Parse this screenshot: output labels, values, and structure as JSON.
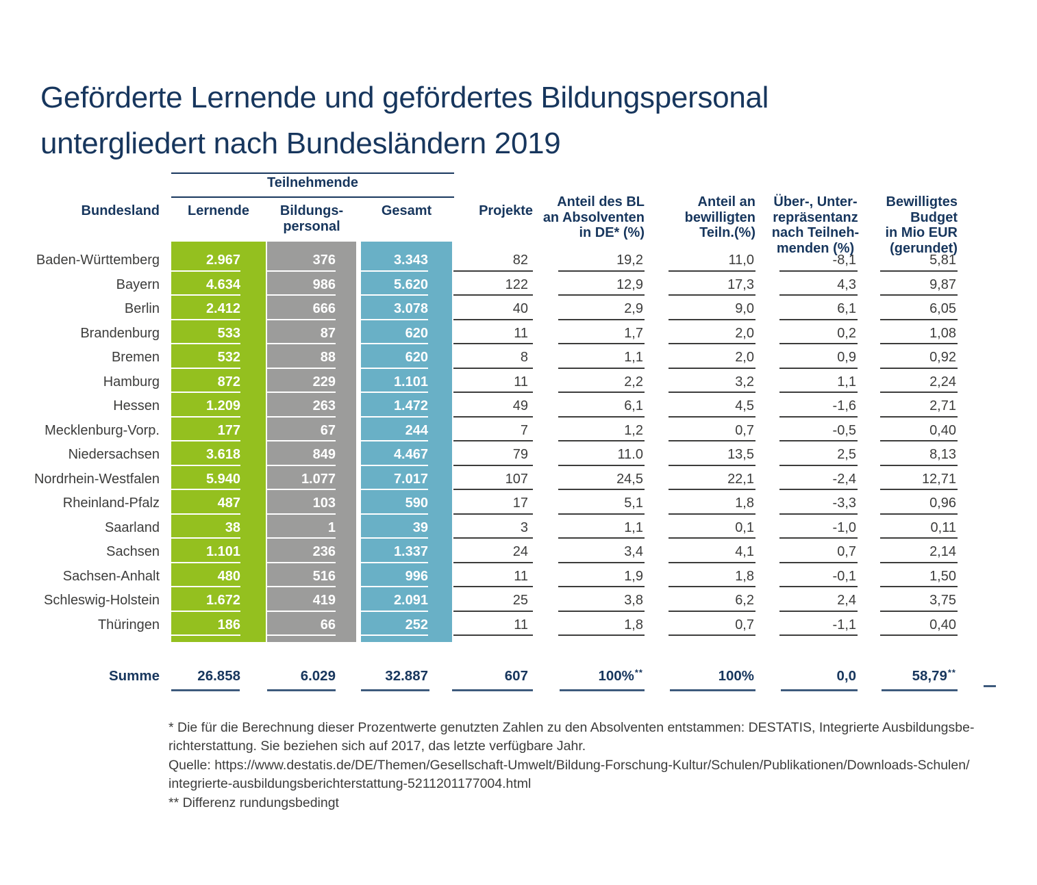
{
  "title": [
    "Geförderte Lernende und gefördertes Bildungspersonal",
    "untergliedert nach Bundesländern 2019"
  ],
  "colors": {
    "navy": "#17365D",
    "green": "#94C01F",
    "gray": "#9C9C9B",
    "blue": "#69B0C6",
    "textc": "#3C3C3B"
  },
  "table": {
    "group_header": "Teilnehmende",
    "headers": {
      "bundesland": "Bundesland",
      "lernende": "Lernende",
      "bildungspersonal": [
        "Bildungs-",
        "personal"
      ],
      "gesamt": "Gesamt",
      "projekte": "Projekte",
      "anteil_absolventen": [
        "Anteil des BL",
        "an Absolventen",
        "in DE* (%)"
      ],
      "anteil_teilnehmende": [
        "Anteil an",
        "bewilligten",
        "Teiln.(%)"
      ],
      "repraesentanz": [
        "Über-, Unter-",
        "repräsentanz",
        "nach Teilneh-",
        "menden (%)"
      ],
      "budget": [
        "Bewilligtes",
        "Budget",
        "in Mio EUR",
        "(gerundet)"
      ]
    },
    "rows": [
      {
        "bundesland": "Baden-Württemberg",
        "lernende": "2.967",
        "bildungspersonal": "376",
        "gesamt": "3.343",
        "projekte": "82",
        "anteil_absolventen": "19,2",
        "anteil_teilnehmende": "11,0",
        "repraesentanz": "-8,1",
        "budget": "5,81"
      },
      {
        "bundesland": "Bayern",
        "lernende": "4.634",
        "bildungspersonal": "986",
        "gesamt": "5.620",
        "projekte": "122",
        "anteil_absolventen": "12,9",
        "anteil_teilnehmende": "17,3",
        "repraesentanz": "4,3",
        "budget": "9,87"
      },
      {
        "bundesland": "Berlin",
        "lernende": "2.412",
        "bildungspersonal": "666",
        "gesamt": "3.078",
        "projekte": "40",
        "anteil_absolventen": "2,9",
        "anteil_teilnehmende": "9,0",
        "repraesentanz": "6,1",
        "budget": "6,05"
      },
      {
        "bundesland": "Brandenburg",
        "lernende": "533",
        "bildungspersonal": "87",
        "gesamt": "620",
        "projekte": "11",
        "anteil_absolventen": "1,7",
        "anteil_teilnehmende": "2,0",
        "repraesentanz": "0,2",
        "budget": "1,08"
      },
      {
        "bundesland": "Bremen",
        "lernende": "532",
        "bildungspersonal": "88",
        "gesamt": "620",
        "projekte": "8",
        "anteil_absolventen": "1,1",
        "anteil_teilnehmende": "2,0",
        "repraesentanz": "0,9",
        "budget": "0,92"
      },
      {
        "bundesland": "Hamburg",
        "lernende": "872",
        "bildungspersonal": "229",
        "gesamt": "1.101",
        "projekte": "11",
        "anteil_absolventen": "2,2",
        "anteil_teilnehmende": "3,2",
        "repraesentanz": "1,1",
        "budget": "2,24"
      },
      {
        "bundesland": "Hessen",
        "lernende": "1.209",
        "bildungspersonal": "263",
        "gesamt": "1.472",
        "projekte": "49",
        "anteil_absolventen": "6,1",
        "anteil_teilnehmende": "4,5",
        "repraesentanz": "-1,6",
        "budget": "2,71"
      },
      {
        "bundesland": "Mecklenburg-Vorp.",
        "lernende": "177",
        "bildungspersonal": "67",
        "gesamt": "244",
        "projekte": "7",
        "anteil_absolventen": "1,2",
        "anteil_teilnehmende": "0,7",
        "repraesentanz": "-0,5",
        "budget": "0,40"
      },
      {
        "bundesland": "Niedersachsen",
        "lernende": "3.618",
        "bildungspersonal": "849",
        "gesamt": "4.467",
        "projekte": "79",
        "anteil_absolventen": "11.0",
        "anteil_teilnehmende": "13,5",
        "repraesentanz": "2,5",
        "budget": "8,13"
      },
      {
        "bundesland": "Nordrhein-Westfalen",
        "lernende": "5.940",
        "bildungspersonal": "1.077",
        "gesamt": "7.017",
        "projekte": "107",
        "anteil_absolventen": "24,5",
        "anteil_teilnehmende": "22,1",
        "repraesentanz": "-2,4",
        "budget": "12,71"
      },
      {
        "bundesland": "Rheinland-Pfalz",
        "lernende": "487",
        "bildungspersonal": "103",
        "gesamt": "590",
        "projekte": "17",
        "anteil_absolventen": "5,1",
        "anteil_teilnehmende": "1,8",
        "repraesentanz": "-3,3",
        "budget": "0,96"
      },
      {
        "bundesland": "Saarland",
        "lernende": "38",
        "bildungspersonal": "1",
        "gesamt": "39",
        "projekte": "3",
        "anteil_absolventen": "1,1",
        "anteil_teilnehmende": "0,1",
        "repraesentanz": "-1,0",
        "budget": "0,11"
      },
      {
        "bundesland": "Sachsen",
        "lernende": "1.101",
        "bildungspersonal": "236",
        "gesamt": "1.337",
        "projekte": "24",
        "anteil_absolventen": "3,4",
        "anteil_teilnehmende": "4,1",
        "repraesentanz": "0,7",
        "budget": "2,14"
      },
      {
        "bundesland": "Sachsen-Anhalt",
        "lernende": "480",
        "bildungspersonal": "516",
        "gesamt": "996",
        "projekte": "11",
        "anteil_absolventen": "1,9",
        "anteil_teilnehmende": "1,8",
        "repraesentanz": "-0,1",
        "budget": "1,50"
      },
      {
        "bundesland": "Schleswig-Holstein",
        "lernende": "1.672",
        "bildungspersonal": "419",
        "gesamt": "2.091",
        "projekte": "25",
        "anteil_absolventen": "3,8",
        "anteil_teilnehmende": "6,2",
        "repraesentanz": "2,4",
        "budget": "3,75"
      },
      {
        "bundesland": "Thüringen",
        "lernende": "186",
        "bildungspersonal": "66",
        "gesamt": "252",
        "projekte": "11",
        "anteil_absolventen": "1,8",
        "anteil_teilnehmende": "0,7",
        "repraesentanz": "-1,1",
        "budget": "0,40"
      }
    ],
    "summe": {
      "label": "Summe",
      "values": {
        "lernende": "26.858",
        "bildungspersonal": "6.029",
        "gesamt": "32.887",
        "projekte": "607",
        "anteil_absolventen": "100%",
        "anteil_teilnehmende": "100%",
        "repraesentanz": "0,0",
        "budget": "58,79"
      },
      "sups": {
        "anteil_absolventen": "**",
        "budget": "**"
      }
    }
  },
  "footnotes": [
    "* Die für die Berechnung dieser Prozentwerte genutzten Zahlen zu den Absolventen entstammen: DESTATIS, Integrierte Ausbildungsbe-",
    "richterstattung. Sie beziehen sich auf 2017, das letzte verfügbare Jahr.",
    "Quelle: https://www.destatis.de/DE/Themen/Gesellschaft-Umwelt/Bildung-Forschung-Kultur/Schulen/Publikationen/Downloads-Schulen/",
    "integrierte-ausbildungsberichterstattung-5211201177004.html",
    "** Differenz rundungsbedingt"
  ]
}
